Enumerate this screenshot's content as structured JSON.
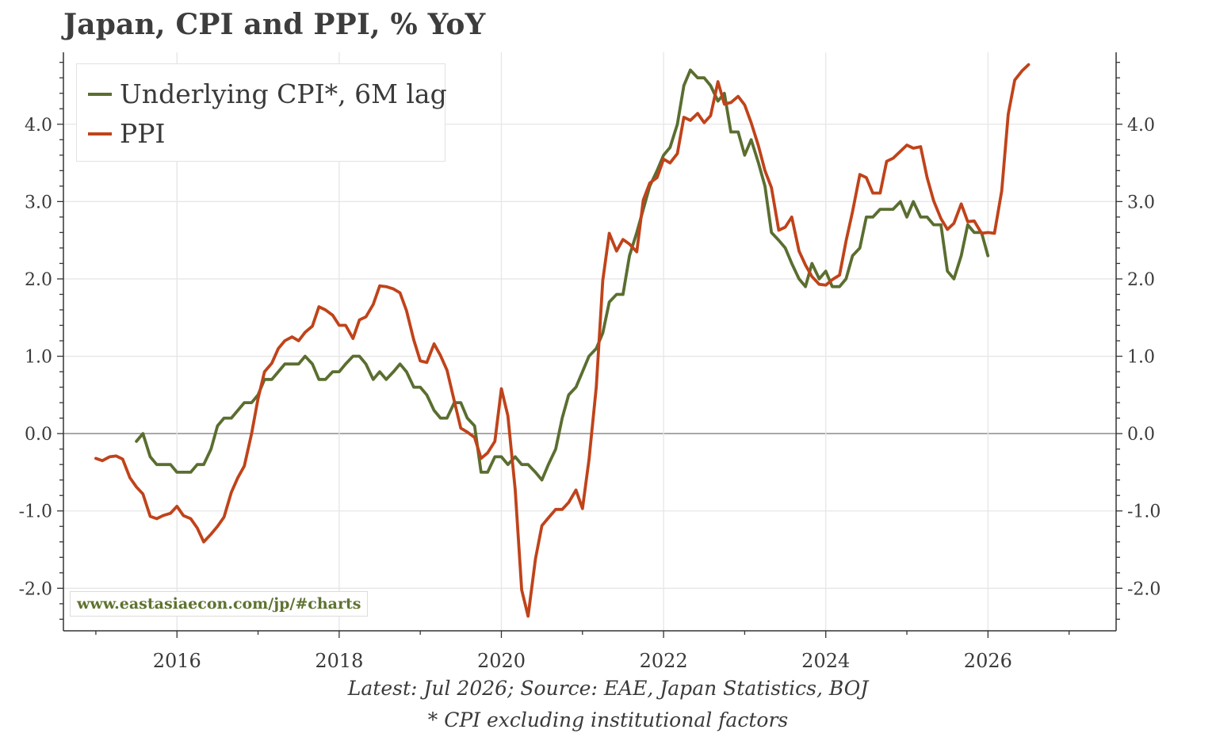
{
  "chart_data": {
    "type": "line",
    "title": "Japan, CPI and PPI, % YoY",
    "xlabel": "",
    "ylabel": "",
    "x_ticks": [
      "2016",
      "2018",
      "2020",
      "2022",
      "2024",
      "2026"
    ],
    "x_tick_values": [
      2016,
      2018,
      2020,
      2022,
      2024,
      2026
    ],
    "y_ticks": [
      "4.0",
      "3.0",
      "2.0",
      "1.0",
      "0.0",
      "-1.0",
      "-2.0"
    ],
    "y_tick_values": [
      4,
      3,
      2,
      1,
      0,
      -1,
      -2
    ],
    "xlim": [
      2014.6,
      2027.58
    ],
    "ylim": [
      -2.55,
      4.93
    ],
    "grid": true,
    "legend_position": "top-left",
    "series": [
      {
        "name": "Underlying CPI*, 6M lag",
        "color": "#5a6e30",
        "points": [
          [
            2015.5,
            -0.1
          ],
          [
            2015.58,
            0.0
          ],
          [
            2015.67,
            -0.3
          ],
          [
            2015.75,
            -0.4
          ],
          [
            2015.83,
            -0.4
          ],
          [
            2015.92,
            -0.4
          ],
          [
            2016.0,
            -0.5
          ],
          [
            2016.17,
            -0.5
          ],
          [
            2016.25,
            -0.4
          ],
          [
            2016.33,
            -0.4
          ],
          [
            2016.42,
            -0.2
          ],
          [
            2016.5,
            0.1
          ],
          [
            2016.58,
            0.2
          ],
          [
            2016.67,
            0.2
          ],
          [
            2016.83,
            0.4
          ],
          [
            2016.92,
            0.4
          ],
          [
            2017.0,
            0.5
          ],
          [
            2017.08,
            0.7
          ],
          [
            2017.17,
            0.7
          ],
          [
            2017.25,
            0.8
          ],
          [
            2017.33,
            0.9
          ],
          [
            2017.5,
            0.9
          ],
          [
            2017.58,
            1.0
          ],
          [
            2017.67,
            0.9
          ],
          [
            2017.75,
            0.7
          ],
          [
            2017.83,
            0.7
          ],
          [
            2017.92,
            0.8
          ],
          [
            2018.0,
            0.8
          ],
          [
            2018.08,
            0.9
          ],
          [
            2018.17,
            1.0
          ],
          [
            2018.25,
            1.0
          ],
          [
            2018.33,
            0.9
          ],
          [
            2018.42,
            0.7
          ],
          [
            2018.5,
            0.8
          ],
          [
            2018.58,
            0.7
          ],
          [
            2018.67,
            0.8
          ],
          [
            2018.75,
            0.9
          ],
          [
            2018.83,
            0.8
          ],
          [
            2018.92,
            0.6
          ],
          [
            2019.0,
            0.6
          ],
          [
            2019.08,
            0.5
          ],
          [
            2019.17,
            0.3
          ],
          [
            2019.25,
            0.2
          ],
          [
            2019.33,
            0.2
          ],
          [
            2019.42,
            0.4
          ],
          [
            2019.5,
            0.4
          ],
          [
            2019.58,
            0.2
          ],
          [
            2019.67,
            0.1
          ],
          [
            2019.75,
            -0.5
          ],
          [
            2019.83,
            -0.5
          ],
          [
            2019.92,
            -0.3
          ],
          [
            2020.0,
            -0.3
          ],
          [
            2020.08,
            -0.4
          ],
          [
            2020.17,
            -0.3
          ],
          [
            2020.25,
            -0.4
          ],
          [
            2020.33,
            -0.4
          ],
          [
            2020.42,
            -0.5
          ],
          [
            2020.5,
            -0.6
          ],
          [
            2020.58,
            -0.4
          ],
          [
            2020.67,
            -0.2
          ],
          [
            2020.75,
            0.2
          ],
          [
            2020.83,
            0.5
          ],
          [
            2020.92,
            0.6
          ],
          [
            2021.0,
            0.8
          ],
          [
            2021.08,
            1.0
          ],
          [
            2021.17,
            1.1
          ],
          [
            2021.25,
            1.3
          ],
          [
            2021.33,
            1.7
          ],
          [
            2021.42,
            1.8
          ],
          [
            2021.5,
            1.8
          ],
          [
            2021.58,
            2.3
          ],
          [
            2021.67,
            2.6
          ],
          [
            2021.75,
            2.9
          ],
          [
            2021.83,
            3.2
          ],
          [
            2021.92,
            3.4
          ],
          [
            2022.0,
            3.6
          ],
          [
            2022.08,
            3.7
          ],
          [
            2022.17,
            4.0
          ],
          [
            2022.25,
            4.5
          ],
          [
            2022.33,
            4.7
          ],
          [
            2022.42,
            4.6
          ],
          [
            2022.5,
            4.6
          ],
          [
            2022.58,
            4.5
          ],
          [
            2022.67,
            4.3
          ],
          [
            2022.75,
            4.4
          ],
          [
            2022.83,
            3.9
          ],
          [
            2022.92,
            3.9
          ],
          [
            2023.0,
            3.6
          ],
          [
            2023.08,
            3.8
          ],
          [
            2023.17,
            3.5
          ],
          [
            2023.25,
            3.2
          ],
          [
            2023.33,
            2.6
          ],
          [
            2023.42,
            2.5
          ],
          [
            2023.5,
            2.4
          ],
          [
            2023.58,
            2.2
          ],
          [
            2023.67,
            2.0
          ],
          [
            2023.75,
            1.9
          ],
          [
            2023.83,
            2.2
          ],
          [
            2023.92,
            2.0
          ],
          [
            2024.0,
            2.1
          ],
          [
            2024.08,
            1.9
          ],
          [
            2024.17,
            1.9
          ],
          [
            2024.25,
            2.0
          ],
          [
            2024.33,
            2.3
          ],
          [
            2024.42,
            2.4
          ],
          [
            2024.5,
            2.8
          ],
          [
            2024.58,
            2.8
          ],
          [
            2024.67,
            2.9
          ],
          [
            2024.83,
            2.9
          ],
          [
            2024.92,
            3.0
          ],
          [
            2025.0,
            2.8
          ],
          [
            2025.08,
            3.0
          ],
          [
            2025.17,
            2.8
          ],
          [
            2025.25,
            2.8
          ],
          [
            2025.33,
            2.7
          ],
          [
            2025.42,
            2.7
          ],
          [
            2025.5,
            2.1
          ],
          [
            2025.58,
            2.0
          ],
          [
            2025.67,
            2.3
          ],
          [
            2025.75,
            2.7
          ],
          [
            2025.83,
            2.6
          ],
          [
            2025.92,
            2.6
          ],
          [
            2026.0,
            2.3
          ]
        ]
      },
      {
        "name": "PPI",
        "color": "#c0431a",
        "points": [
          [
            2015.0,
            -0.32
          ],
          [
            2015.08,
            -0.35
          ],
          [
            2015.17,
            -0.3
          ],
          [
            2015.25,
            -0.29
          ],
          [
            2015.33,
            -0.33
          ],
          [
            2015.42,
            -0.57
          ],
          [
            2015.5,
            -0.69
          ],
          [
            2015.58,
            -0.78
          ],
          [
            2015.67,
            -1.07
          ],
          [
            2015.75,
            -1.1
          ],
          [
            2015.83,
            -1.06
          ],
          [
            2015.92,
            -1.03
          ],
          [
            2016.0,
            -0.94
          ],
          [
            2016.08,
            -1.06
          ],
          [
            2016.17,
            -1.1
          ],
          [
            2016.25,
            -1.22
          ],
          [
            2016.33,
            -1.4
          ],
          [
            2016.42,
            -1.3
          ],
          [
            2016.5,
            -1.2
          ],
          [
            2016.58,
            -1.08
          ],
          [
            2016.67,
            -0.76
          ],
          [
            2016.75,
            -0.57
          ],
          [
            2016.83,
            -0.42
          ],
          [
            2016.92,
            0.0
          ],
          [
            2017.0,
            0.45
          ],
          [
            2017.08,
            0.8
          ],
          [
            2017.17,
            0.91
          ],
          [
            2017.25,
            1.1
          ],
          [
            2017.33,
            1.2
          ],
          [
            2017.42,
            1.25
          ],
          [
            2017.5,
            1.2
          ],
          [
            2017.58,
            1.31
          ],
          [
            2017.67,
            1.39
          ],
          [
            2017.75,
            1.64
          ],
          [
            2017.83,
            1.6
          ],
          [
            2017.92,
            1.53
          ],
          [
            2018.0,
            1.4
          ],
          [
            2018.08,
            1.4
          ],
          [
            2018.17,
            1.23
          ],
          [
            2018.25,
            1.47
          ],
          [
            2018.33,
            1.51
          ],
          [
            2018.42,
            1.67
          ],
          [
            2018.5,
            1.91
          ],
          [
            2018.58,
            1.9
          ],
          [
            2018.67,
            1.87
          ],
          [
            2018.75,
            1.82
          ],
          [
            2018.83,
            1.59
          ],
          [
            2018.92,
            1.21
          ],
          [
            2019.0,
            0.94
          ],
          [
            2019.08,
            0.92
          ],
          [
            2019.17,
            1.16
          ],
          [
            2019.25,
            1.01
          ],
          [
            2019.33,
            0.82
          ],
          [
            2019.42,
            0.42
          ],
          [
            2019.5,
            0.07
          ],
          [
            2019.58,
            0.02
          ],
          [
            2019.67,
            -0.05
          ],
          [
            2019.75,
            -0.32
          ],
          [
            2019.83,
            -0.25
          ],
          [
            2019.92,
            -0.1
          ],
          [
            2020.0,
            0.58
          ],
          [
            2020.08,
            0.23
          ],
          [
            2020.17,
            -0.72
          ],
          [
            2020.25,
            -2.02
          ],
          [
            2020.33,
            -2.36
          ],
          [
            2020.42,
            -1.62
          ],
          [
            2020.5,
            -1.19
          ],
          [
            2020.58,
            -1.09
          ],
          [
            2020.67,
            -0.98
          ],
          [
            2020.75,
            -0.98
          ],
          [
            2020.83,
            -0.89
          ],
          [
            2020.92,
            -0.73
          ],
          [
            2021.0,
            -0.97
          ],
          [
            2021.08,
            -0.34
          ],
          [
            2021.17,
            0.6
          ],
          [
            2021.25,
            1.98
          ],
          [
            2021.33,
            2.59
          ],
          [
            2021.42,
            2.36
          ],
          [
            2021.5,
            2.51
          ],
          [
            2021.58,
            2.45
          ],
          [
            2021.67,
            2.35
          ],
          [
            2021.75,
            3.02
          ],
          [
            2021.83,
            3.24
          ],
          [
            2021.92,
            3.31
          ],
          [
            2022.0,
            3.55
          ],
          [
            2022.08,
            3.5
          ],
          [
            2022.17,
            3.62
          ],
          [
            2022.25,
            4.09
          ],
          [
            2022.33,
            4.05
          ],
          [
            2022.42,
            4.14
          ],
          [
            2022.5,
            4.02
          ],
          [
            2022.58,
            4.11
          ],
          [
            2022.67,
            4.55
          ],
          [
            2022.75,
            4.26
          ],
          [
            2022.83,
            4.28
          ],
          [
            2022.92,
            4.36
          ],
          [
            2023.0,
            4.25
          ],
          [
            2023.08,
            4.02
          ],
          [
            2023.17,
            3.72
          ],
          [
            2023.25,
            3.4
          ],
          [
            2023.33,
            3.18
          ],
          [
            2023.42,
            2.63
          ],
          [
            2023.5,
            2.67
          ],
          [
            2023.58,
            2.8
          ],
          [
            2023.67,
            2.36
          ],
          [
            2023.75,
            2.18
          ],
          [
            2023.83,
            2.03
          ],
          [
            2023.92,
            1.93
          ],
          [
            2024.0,
            1.92
          ],
          [
            2024.08,
            1.99
          ],
          [
            2024.17,
            2.05
          ],
          [
            2024.25,
            2.49
          ],
          [
            2024.33,
            2.87
          ],
          [
            2024.42,
            3.35
          ],
          [
            2024.5,
            3.31
          ],
          [
            2024.58,
            3.11
          ],
          [
            2024.67,
            3.11
          ],
          [
            2024.75,
            3.52
          ],
          [
            2024.83,
            3.56
          ],
          [
            2024.92,
            3.65
          ],
          [
            2025.0,
            3.73
          ],
          [
            2025.08,
            3.69
          ],
          [
            2025.17,
            3.71
          ],
          [
            2025.25,
            3.31
          ],
          [
            2025.33,
            3.01
          ],
          [
            2025.42,
            2.78
          ],
          [
            2025.5,
            2.64
          ],
          [
            2025.58,
            2.72
          ],
          [
            2025.67,
            2.97
          ],
          [
            2025.75,
            2.74
          ],
          [
            2025.83,
            2.75
          ],
          [
            2025.92,
            2.59
          ],
          [
            2026.0,
            2.6
          ],
          [
            2026.08,
            2.59
          ],
          [
            2026.17,
            3.14
          ],
          [
            2026.25,
            4.13
          ],
          [
            2026.33,
            4.57
          ],
          [
            2026.42,
            4.69
          ],
          [
            2026.5,
            4.77
          ]
        ]
      }
    ]
  },
  "legend": {
    "items": [
      {
        "label": "Underlying CPI*, 6M lag",
        "color": "#5a6e30"
      },
      {
        "label": "PPI",
        "color": "#c0431a"
      }
    ]
  },
  "watermark": "www.eastasiaecon.com/jp/#charts",
  "footnotes": {
    "source": "Latest: Jul 2026; Source: EAE, Japan Statistics, BOJ",
    "note": "* CPI excluding institutional factors"
  }
}
